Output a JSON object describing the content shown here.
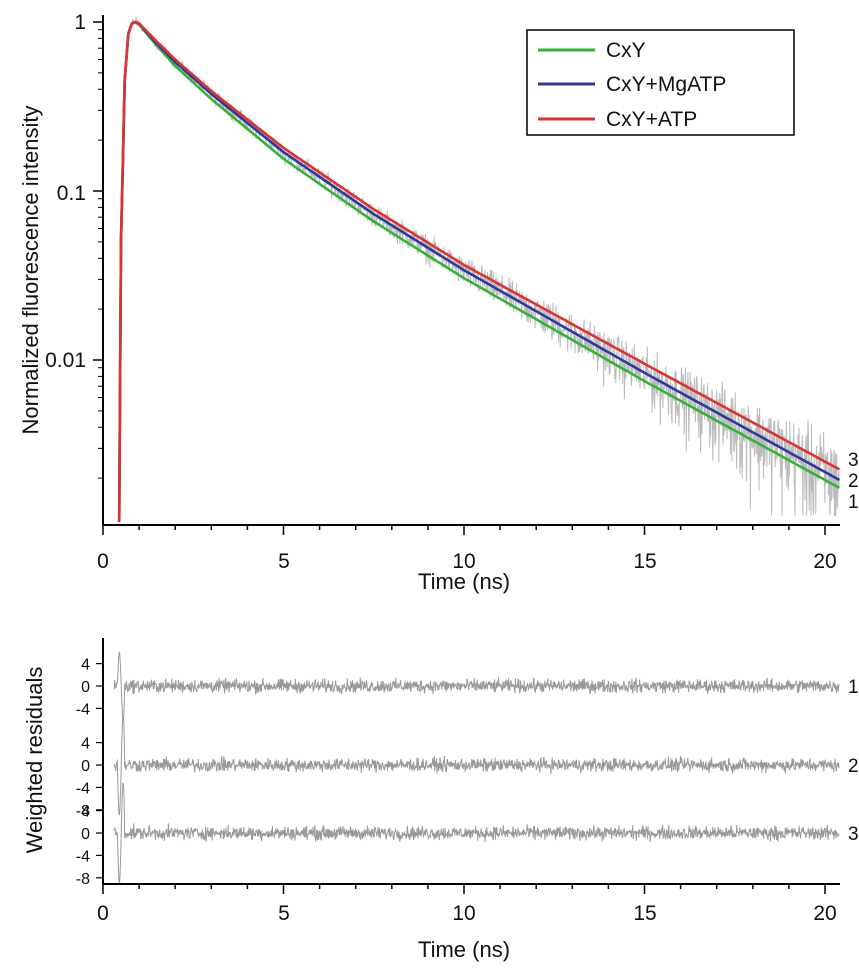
{
  "chart_data": [
    {
      "type": "line",
      "yscale": "log",
      "xlabel": "Time (ns)",
      "ylabel": "Normalized fluorescence intensity",
      "xlim": [
        0,
        20.5
      ],
      "ylim": [
        0.0011,
        1.2
      ],
      "x_ticks": [
        0,
        5,
        10,
        15,
        20
      ],
      "x_tick_labels": [
        "0",
        "5",
        "10",
        "15",
        "20"
      ],
      "y_ticks": [
        1,
        0.1,
        0.01
      ],
      "y_tick_labels": [
        "1",
        "0.1",
        "0.01"
      ],
      "legend": {
        "position": "top-right"
      },
      "raw_data_color": "#bbbbbb",
      "series": [
        {
          "name": "CxY",
          "color": "#33b233",
          "end_label": "1",
          "x": [
            0.45,
            0.5,
            0.6,
            0.7,
            0.8,
            0.9,
            1.0,
            1.5,
            2,
            3,
            5,
            7.5,
            10,
            15,
            20.4
          ],
          "y": [
            0.0011,
            0.05,
            0.45,
            0.85,
            0.98,
            1.0,
            0.97,
            0.72,
            0.55,
            0.35,
            0.155,
            0.066,
            0.0305,
            0.0075,
            0.00175
          ]
        },
        {
          "name": "CxY+MgATP",
          "color": "#2b3aa0",
          "end_label": "2",
          "x": [
            0.45,
            0.5,
            0.6,
            0.7,
            0.8,
            0.9,
            1.0,
            1.5,
            2,
            3,
            5,
            7.5,
            10,
            15,
            20.4
          ],
          "y": [
            0.0011,
            0.05,
            0.45,
            0.85,
            0.98,
            1.0,
            0.975,
            0.74,
            0.58,
            0.375,
            0.17,
            0.073,
            0.034,
            0.0084,
            0.00195
          ]
        },
        {
          "name": "CxY+ATP",
          "color": "#e03030",
          "end_label": "3",
          "x": [
            0.45,
            0.5,
            0.6,
            0.7,
            0.8,
            0.9,
            1.0,
            1.5,
            2,
            3,
            5,
            7.5,
            10,
            15,
            20.4
          ],
          "y": [
            0.0011,
            0.05,
            0.45,
            0.85,
            0.98,
            1.0,
            0.98,
            0.76,
            0.6,
            0.39,
            0.18,
            0.078,
            0.0365,
            0.0095,
            0.00225
          ]
        }
      ]
    },
    {
      "type": "line",
      "xlabel": "Time (ns)",
      "ylabel": "Weighted residuals",
      "xlim": [
        0,
        20.5
      ],
      "x_ticks": [
        0,
        5,
        10,
        15,
        20
      ],
      "x_tick_labels": [
        "0",
        "5",
        "10",
        "15",
        "20"
      ],
      "panel_y_ticks": [
        [
          "4",
          "0",
          "-4"
        ],
        [
          "4",
          "0",
          "-4",
          "-8"
        ],
        [
          "4",
          "0",
          "-4",
          "-8"
        ]
      ],
      "residual_color": "#999999",
      "series": [
        {
          "label": "1",
          "range": [
            -4,
            4
          ]
        },
        {
          "label": "2",
          "range": [
            -4,
            4
          ]
        },
        {
          "label": "3",
          "range": [
            -4,
            4
          ]
        }
      ]
    }
  ]
}
